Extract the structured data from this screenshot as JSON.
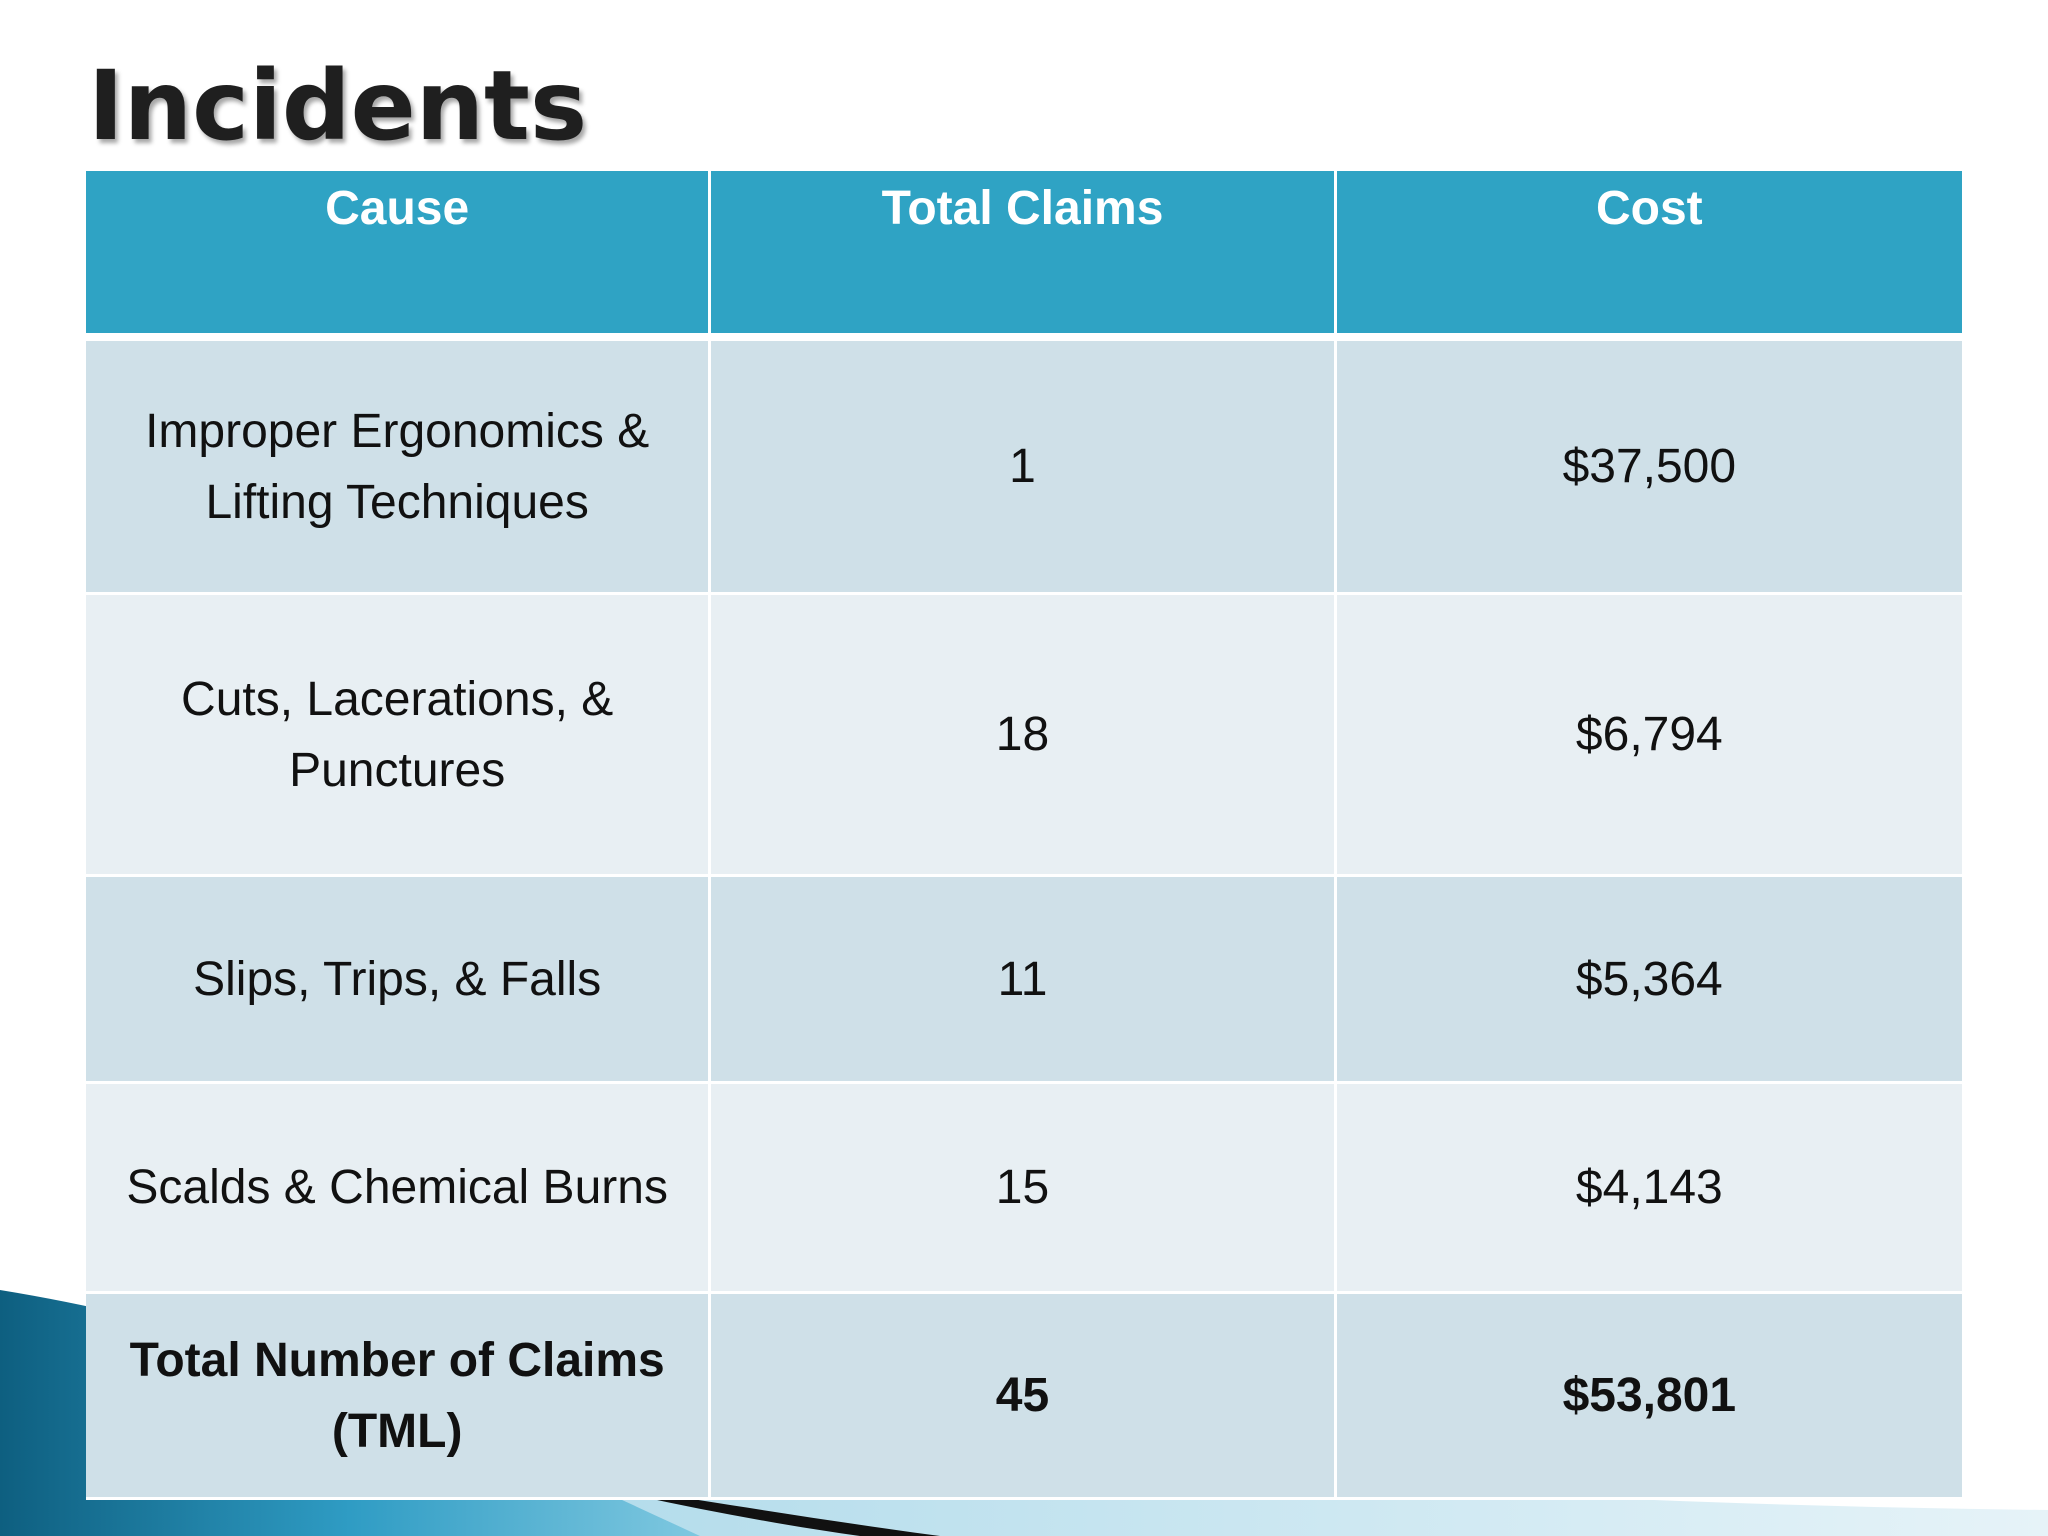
{
  "title": "Incidents",
  "table": {
    "headers": [
      "Cause",
      "Total Claims",
      "Cost"
    ],
    "rows": [
      {
        "cause_line1": "Improper Ergonomics &",
        "cause_line2": "Lifting Techniques",
        "claims": "1",
        "cost": "$37,500"
      },
      {
        "cause_line1": "Cuts, Lacerations, &",
        "cause_line2": "Punctures",
        "claims": "18",
        "cost": "$6,794"
      },
      {
        "cause_line1": "Slips, Trips, & Falls",
        "cause_line2": "",
        "claims": "11",
        "cost": "$5,364"
      },
      {
        "cause_line1": "Scalds & Chemical Burns",
        "cause_line2": "",
        "claims": "15",
        "cost": "$4,143"
      }
    ],
    "total": {
      "cause_line1": "Total Number of Claims",
      "cause_line2": "(TML)",
      "claims": "45",
      "cost": "$53,801"
    }
  },
  "colors": {
    "header_bg": "#2fa3c4",
    "row_dark": "#cfe0e8",
    "row_light": "#e8eff3",
    "accent_teal": "#1d7ea0"
  }
}
